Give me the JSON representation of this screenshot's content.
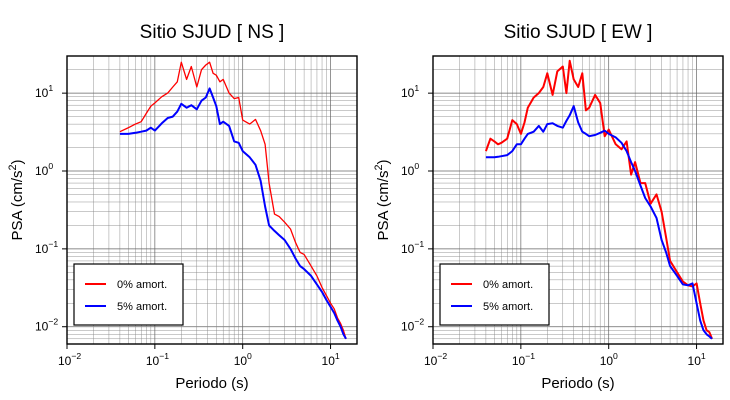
{
  "chart_data": [
    {
      "type": "line",
      "title": "Sitio SJUD [ NS ]",
      "xlabel": "Periodo (s)",
      "ylabel_main": "PSA (cm/s",
      "ylabel_sup": "2",
      "ylabel_tail": ")",
      "xscale": "log",
      "yscale": "log",
      "xlim": [
        0.01,
        20
      ],
      "ylim": [
        0.006,
        30
      ],
      "grid": true,
      "legend_position": "bottom-left",
      "x_tick_labels": [
        {
          "base": "10",
          "exp": "−2"
        },
        {
          "base": "10",
          "exp": "−1"
        },
        {
          "base": "10",
          "exp": "0"
        },
        {
          "base": "10",
          "exp": "1"
        }
      ],
      "y_tick_labels": [
        {
          "base": "10",
          "exp": "−2"
        },
        {
          "base": "10",
          "exp": "−1"
        },
        {
          "base": "10",
          "exp": "0"
        },
        {
          "base": "10",
          "exp": "1"
        }
      ],
      "x": [
        0.04,
        0.05,
        0.06,
        0.07,
        0.08,
        0.09,
        0.1,
        0.12,
        0.14,
        0.16,
        0.18,
        0.2,
        0.23,
        0.26,
        0.3,
        0.34,
        0.38,
        0.42,
        0.46,
        0.5,
        0.55,
        0.6,
        0.7,
        0.8,
        0.9,
        1.0,
        1.2,
        1.4,
        1.6,
        1.8,
        2.0,
        2.3,
        2.6,
        3.0,
        3.5,
        4.0,
        4.5,
        5,
        6,
        7,
        8,
        9,
        10,
        11,
        12,
        13,
        14,
        15
      ],
      "series": [
        {
          "name": "0% amort.",
          "color": "#ff0000",
          "values": [
            3.2,
            3.6,
            4.0,
            4.3,
            5.5,
            6.8,
            7.5,
            9,
            10,
            12,
            14,
            25,
            15,
            22,
            12,
            20,
            23,
            25,
            18,
            17,
            14,
            15,
            10,
            8.5,
            8.8,
            4.5,
            4.0,
            4.6,
            3.3,
            2.2,
            0.7,
            0.28,
            0.26,
            0.22,
            0.18,
            0.12,
            0.09,
            0.085,
            0.06,
            0.045,
            0.032,
            0.025,
            0.02,
            0.017,
            0.013,
            0.011,
            0.009,
            0.007
          ]
        },
        {
          "name": "5% amort.",
          "color": "#0000ff",
          "values": [
            3.0,
            3.0,
            3.1,
            3.2,
            3.3,
            3.6,
            3.3,
            4.1,
            4.8,
            5.0,
            5.8,
            7.3,
            6.5,
            7.0,
            6.2,
            8.0,
            8.8,
            11.5,
            8.8,
            6.8,
            4.0,
            4.3,
            3.8,
            2.4,
            2.3,
            1.8,
            1.5,
            1.2,
            0.75,
            0.35,
            0.2,
            0.17,
            0.15,
            0.13,
            0.1,
            0.075,
            0.06,
            0.055,
            0.045,
            0.035,
            0.028,
            0.022,
            0.018,
            0.015,
            0.012,
            0.01,
            0.008,
            0.007
          ]
        }
      ]
    },
    {
      "type": "line",
      "title": "Sitio SJUD [ EW ]",
      "xlabel": "Periodo (s)",
      "ylabel_main": "PSA (cm/s",
      "ylabel_sup": "2",
      "ylabel_tail": ")",
      "xscale": "log",
      "yscale": "log",
      "xlim": [
        0.01,
        20
      ],
      "ylim": [
        0.006,
        30
      ],
      "grid": true,
      "legend_position": "bottom-left",
      "x_tick_labels": [
        {
          "base": "10",
          "exp": "−2"
        },
        {
          "base": "10",
          "exp": "−1"
        },
        {
          "base": "10",
          "exp": "0"
        },
        {
          "base": "10",
          "exp": "1"
        }
      ],
      "y_tick_labels": [
        {
          "base": "10",
          "exp": "−2"
        },
        {
          "base": "10",
          "exp": "−1"
        },
        {
          "base": "10",
          "exp": "0"
        },
        {
          "base": "10",
          "exp": "1"
        }
      ],
      "x": [
        0.04,
        0.045,
        0.05,
        0.055,
        0.06,
        0.07,
        0.08,
        0.09,
        0.1,
        0.11,
        0.12,
        0.14,
        0.16,
        0.18,
        0.2,
        0.23,
        0.26,
        0.3,
        0.33,
        0.36,
        0.4,
        0.45,
        0.5,
        0.55,
        0.6,
        0.7,
        0.8,
        0.9,
        1.0,
        1.2,
        1.4,
        1.6,
        1.8,
        2.0,
        2.3,
        2.6,
        3.0,
        3.5,
        4.0,
        4.5,
        5,
        6,
        7,
        8,
        9,
        10,
        11,
        12,
        13,
        14,
        15
      ],
      "series": [
        {
          "name": "0% amort.",
          "color": "#ff0000",
          "values": [
            1.8,
            2.6,
            2.4,
            2.2,
            2.3,
            2.6,
            4.5,
            4.0,
            3.0,
            4.2,
            6.5,
            8.8,
            10,
            12,
            18,
            9.5,
            19,
            22,
            10,
            26,
            15,
            12,
            18,
            6,
            6.5,
            9.5,
            7.5,
            2.8,
            3.4,
            2.2,
            1.9,
            2.4,
            0.9,
            1.3,
            0.7,
            0.7,
            0.38,
            0.5,
            0.3,
            0.14,
            0.07,
            0.05,
            0.038,
            0.034,
            0.033,
            0.036,
            0.02,
            0.012,
            0.009,
            0.0085,
            0.007
          ]
        },
        {
          "name": "5% amort.",
          "color": "#0000ff",
          "values": [
            1.5,
            1.5,
            1.5,
            1.52,
            1.55,
            1.6,
            1.8,
            2.2,
            2.2,
            2.6,
            3.0,
            3.2,
            3.8,
            3.2,
            4.0,
            4.1,
            3.8,
            3.6,
            4.4,
            5.2,
            6.8,
            4.2,
            3.2,
            3.0,
            2.8,
            2.9,
            3.1,
            3.3,
            3.0,
            2.7,
            2.3,
            1.8,
            1.3,
            1.0,
            0.65,
            0.45,
            0.35,
            0.25,
            0.13,
            0.09,
            0.06,
            0.045,
            0.035,
            0.034,
            0.036,
            0.02,
            0.012,
            0.009,
            0.008,
            0.0075,
            0.007
          ]
        }
      ]
    }
  ]
}
